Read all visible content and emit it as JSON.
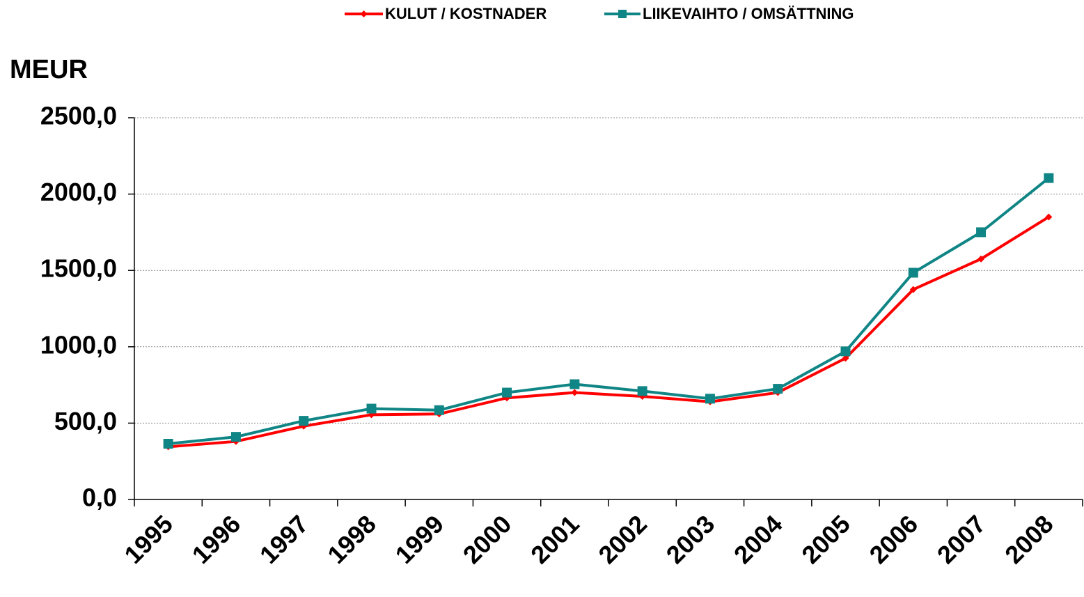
{
  "chart_data": {
    "type": "line",
    "y_label": "MEUR",
    "categories": [
      "1995",
      "1996",
      "1997",
      "1998",
      "1999",
      "2000",
      "2001",
      "2002",
      "2003",
      "2004",
      "2005",
      "2006",
      "2007",
      "2008"
    ],
    "series": [
      {
        "name": "KULUT / KOSTNADER",
        "color": "#ff0000",
        "marker": "diamond",
        "values": [
          345,
          380,
          480,
          555,
          560,
          665,
          700,
          675,
          640,
          700,
          925,
          1375,
          1575,
          1850
        ]
      },
      {
        "name": "LIIKEVAIHTO / OMSÄTTNING",
        "color": "#108585",
        "marker": "square",
        "values": [
          365,
          410,
          515,
          595,
          585,
          700,
          755,
          710,
          660,
          725,
          970,
          1485,
          1750,
          2105
        ]
      }
    ],
    "ylim": [
      0,
      2500
    ],
    "yticks": [
      {
        "value": 0,
        "label": "0,0"
      },
      {
        "value": 500,
        "label": "500,0"
      },
      {
        "value": 1000,
        "label": "1000,0"
      },
      {
        "value": 1500,
        "label": "1500,0"
      },
      {
        "value": 2000,
        "label": "2000,0"
      },
      {
        "value": 2500,
        "label": "2500,0"
      }
    ],
    "grid": true,
    "legend": "top"
  }
}
